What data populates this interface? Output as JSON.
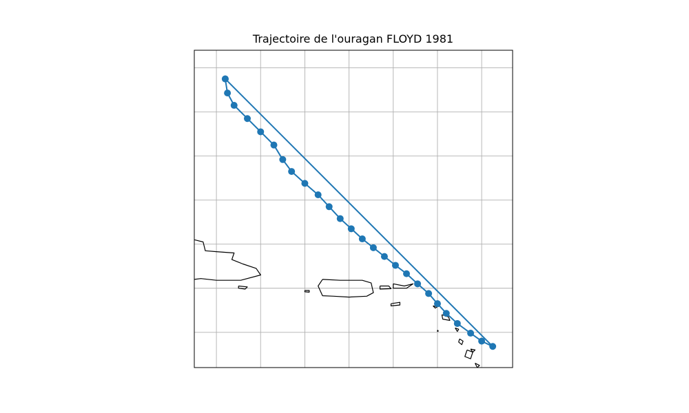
{
  "chart_data": {
    "type": "line",
    "title": "Trajectoire de l'ouragan FLOYD 1981",
    "xlabel": "",
    "ylabel": "",
    "grid": true,
    "xlim": [
      -68.5,
      -61.3
    ],
    "ylim": [
      12.2,
      19.4
    ],
    "series": [
      {
        "color": "#1f77b4",
        "marker": "circle",
        "x": [
          -67.8,
          -67.75,
          -67.6,
          -67.3,
          -67.0,
          -66.7,
          -66.5,
          -66.3,
          -66.0,
          -65.7,
          -65.45,
          -65.2,
          -64.95,
          -64.7,
          -64.45,
          -64.2,
          -63.95,
          -63.7,
          -63.45,
          -63.2,
          -63.0,
          -62.8,
          -62.55,
          -62.25,
          -62.0,
          -61.75,
          -67.8
        ],
        "y": [
          18.75,
          18.43,
          18.15,
          17.85,
          17.55,
          17.25,
          16.92,
          16.65,
          16.38,
          16.12,
          15.85,
          15.58,
          15.35,
          15.12,
          14.92,
          14.72,
          14.52,
          14.33,
          14.1,
          13.88,
          13.65,
          13.43,
          13.2,
          12.98,
          12.8,
          12.68,
          18.75
        ]
      }
    ],
    "coastline": {
      "color": "#000000",
      "shapes": [
        [
          [
            -68.5,
            15.1
          ],
          [
            -68.3,
            15.05
          ],
          [
            -68.25,
            14.85
          ],
          [
            -68.0,
            14.83
          ],
          [
            -67.6,
            14.8
          ],
          [
            -67.65,
            14.65
          ],
          [
            -67.4,
            14.55
          ],
          [
            -67.1,
            14.45
          ],
          [
            -67.0,
            14.3
          ],
          [
            -67.45,
            14.18
          ],
          [
            -68.0,
            14.18
          ],
          [
            -68.35,
            14.22
          ],
          [
            -68.5,
            14.2
          ]
        ],
        [
          [
            -65.6,
            14.2
          ],
          [
            -65.2,
            14.18
          ],
          [
            -64.7,
            14.18
          ],
          [
            -64.5,
            14.12
          ],
          [
            -64.45,
            13.9
          ],
          [
            -64.6,
            13.82
          ],
          [
            -65.0,
            13.8
          ],
          [
            -65.35,
            13.82
          ],
          [
            -65.6,
            13.83
          ],
          [
            -65.7,
            14.05
          ],
          [
            -65.6,
            14.2
          ]
        ],
        [
          [
            -67.5,
            14.05
          ],
          [
            -67.3,
            14.03
          ],
          [
            -67.35,
            13.98
          ],
          [
            -67.5,
            14.0
          ],
          [
            -67.5,
            14.05
          ]
        ],
        [
          [
            -66.0,
            13.95
          ],
          [
            -65.9,
            13.95
          ],
          [
            -65.9,
            13.91
          ],
          [
            -66.0,
            13.92
          ],
          [
            -66.0,
            13.95
          ]
        ],
        [
          [
            -64.3,
            14.05
          ],
          [
            -64.1,
            14.05
          ],
          [
            -64.05,
            13.99
          ],
          [
            -64.3,
            13.98
          ],
          [
            -64.3,
            14.05
          ]
        ],
        [
          [
            -64.0,
            14.1
          ],
          [
            -63.75,
            14.05
          ],
          [
            -63.55,
            14.1
          ],
          [
            -63.7,
            14.0
          ],
          [
            -64.0,
            14.0
          ],
          [
            -64.0,
            14.1
          ]
        ],
        [
          [
            -64.05,
            13.65
          ],
          [
            -63.85,
            13.68
          ],
          [
            -63.85,
            13.62
          ],
          [
            -64.05,
            13.6
          ],
          [
            -64.05,
            13.65
          ]
        ],
        [
          [
            -63.1,
            13.6
          ],
          [
            -63.0,
            13.58
          ],
          [
            -63.05,
            13.55
          ],
          [
            -63.1,
            13.6
          ]
        ],
        [
          [
            -62.9,
            13.4
          ],
          [
            -62.75,
            13.35
          ],
          [
            -62.72,
            13.27
          ],
          [
            -62.88,
            13.3
          ],
          [
            -62.9,
            13.4
          ]
        ],
        [
          [
            -62.6,
            13.1
          ],
          [
            -62.52,
            13.07
          ],
          [
            -62.55,
            13.02
          ],
          [
            -62.6,
            13.1
          ]
        ],
        [
          [
            -62.5,
            12.85
          ],
          [
            -62.42,
            12.8
          ],
          [
            -62.45,
            12.72
          ],
          [
            -62.52,
            12.78
          ],
          [
            -62.5,
            12.85
          ]
        ],
        [
          [
            -62.33,
            12.6
          ],
          [
            -62.2,
            12.55
          ],
          [
            -62.25,
            12.4
          ],
          [
            -62.38,
            12.45
          ],
          [
            -62.33,
            12.6
          ]
        ],
        [
          [
            -62.25,
            12.62
          ],
          [
            -62.15,
            12.6
          ],
          [
            -62.2,
            12.55
          ],
          [
            -62.25,
            12.62
          ]
        ],
        [
          [
            -62.3,
            12.05
          ],
          [
            -62.1,
            12.1
          ],
          [
            -62.15,
            11.9
          ],
          [
            -62.2,
            11.8
          ],
          [
            -62.05,
            11.75
          ],
          [
            -62.1,
            11.95
          ]
        ],
        [
          [
            -62.15,
            12.3
          ],
          [
            -62.05,
            12.25
          ],
          [
            -62.1,
            12.2
          ],
          [
            -62.15,
            12.3
          ]
        ],
        [
          [
            -63.5,
            12.0
          ],
          [
            -63.48,
            11.98
          ],
          [
            -63.5,
            11.97
          ],
          [
            -63.5,
            12.0
          ]
        ],
        [
          [
            -63.0,
            13.05
          ],
          [
            -62.98,
            13.03
          ],
          [
            -63.0,
            13.02
          ],
          [
            -63.0,
            13.05
          ]
        ]
      ]
    }
  }
}
